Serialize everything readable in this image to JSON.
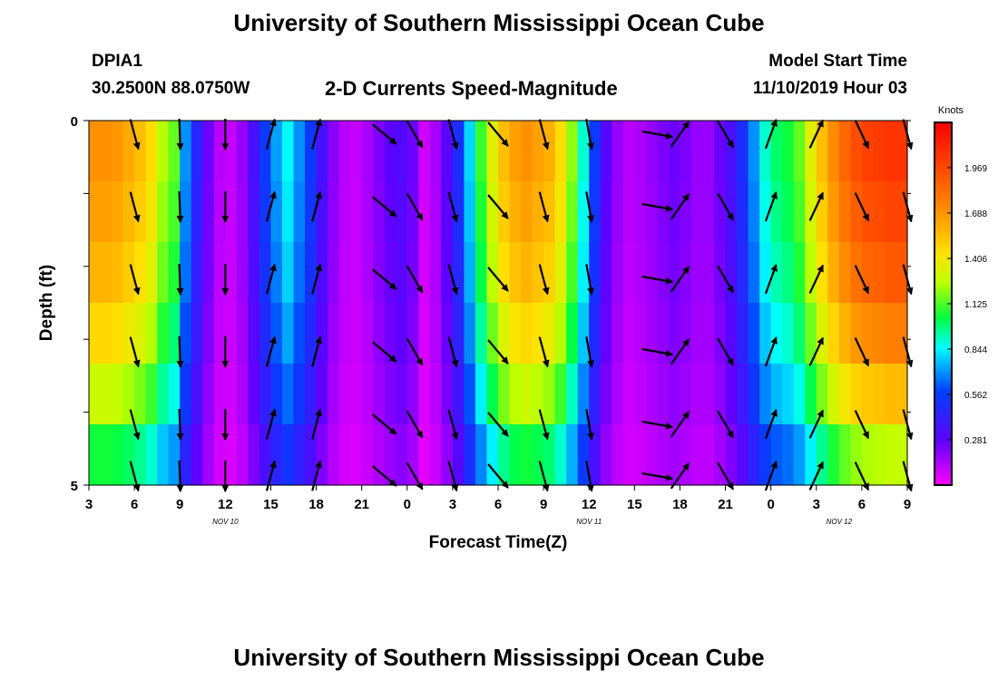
{
  "header": {
    "title": "University of Southern Mississippi Ocean Cube",
    "station": "DPIA1",
    "coords": "30.2500N 88.0750W",
    "subtitle": "2-D Currents Speed-Magnitude",
    "model_label": "Model Start Time",
    "model_time": "11/10/2019 Hour 03"
  },
  "footer": {
    "title": "University of Southern Mississippi Ocean Cube"
  },
  "chart_data": {
    "type": "heatmap",
    "title": "2-D Currents Speed-Magnitude",
    "xlabel": "Forecast Time(Z)",
    "ylabel": "Depth (ft)",
    "x_tick_labels": [
      "3",
      "6",
      "9",
      "12",
      "15",
      "18",
      "21",
      "0",
      "3",
      "6",
      "9",
      "12",
      "15",
      "18",
      "21",
      "0",
      "3",
      "6",
      "9"
    ],
    "date_labels": [
      {
        "label": "NOV 10",
        "at_tick": 3
      },
      {
        "label": "NOV 11",
        "at_tick": 11
      },
      {
        "label": "NOV 12",
        "at_tick": 16.5
      }
    ],
    "y_tick_labels": [
      "0",
      "5"
    ],
    "ylim": [
      0,
      5
    ],
    "colorbar": {
      "label": "Knots",
      "ticks": [
        "1.969",
        "1.688",
        "1.406",
        "1.125",
        "0.844",
        "0.562",
        "0.281"
      ],
      "range": [
        0,
        2.25
      ]
    },
    "speed_profile_knots": [
      1.7,
      1.7,
      1.68,
      1.62,
      1.55,
      1.45,
      1.25,
      1.15,
      0.7,
      0.45,
      0.25,
      0.12,
      0.1,
      0.18,
      0.35,
      0.55,
      0.72,
      0.85,
      0.7,
      0.55,
      0.35,
      0.2,
      0.12,
      0.1,
      0.15,
      0.22,
      0.28,
      0.32,
      0.25,
      0.08,
      0.15,
      0.3,
      0.5,
      0.8,
      1.1,
      1.35,
      1.55,
      1.65,
      1.7,
      1.65,
      1.6,
      1.45,
      1.2,
      0.9,
      0.55,
      0.3,
      0.18,
      0.12,
      0.14,
      0.18,
      0.22,
      0.25,
      0.22,
      0.18,
      0.18,
      0.25,
      0.35,
      0.5,
      0.7,
      0.9,
      1.0,
      1.05,
      1.15,
      1.35,
      1.55,
      1.72,
      1.85,
      1.95,
      2.0,
      2.02,
      2.05,
      2.05
    ],
    "depth_factors": [
      1.0,
      0.97,
      0.93,
      0.86,
      0.76,
      0.62
    ],
    "vector_times_hours": [
      3,
      6,
      9,
      12,
      15,
      19.5,
      21.5,
      24,
      27,
      30,
      33,
      37.5,
      39,
      42,
      45,
      48,
      51,
      54
    ],
    "vector_angles_deg": [
      165,
      178,
      180,
      15,
      15,
      130,
      150,
      165,
      140,
      165,
      170,
      100,
      35,
      150,
      20,
      25,
      155,
      165
    ]
  }
}
